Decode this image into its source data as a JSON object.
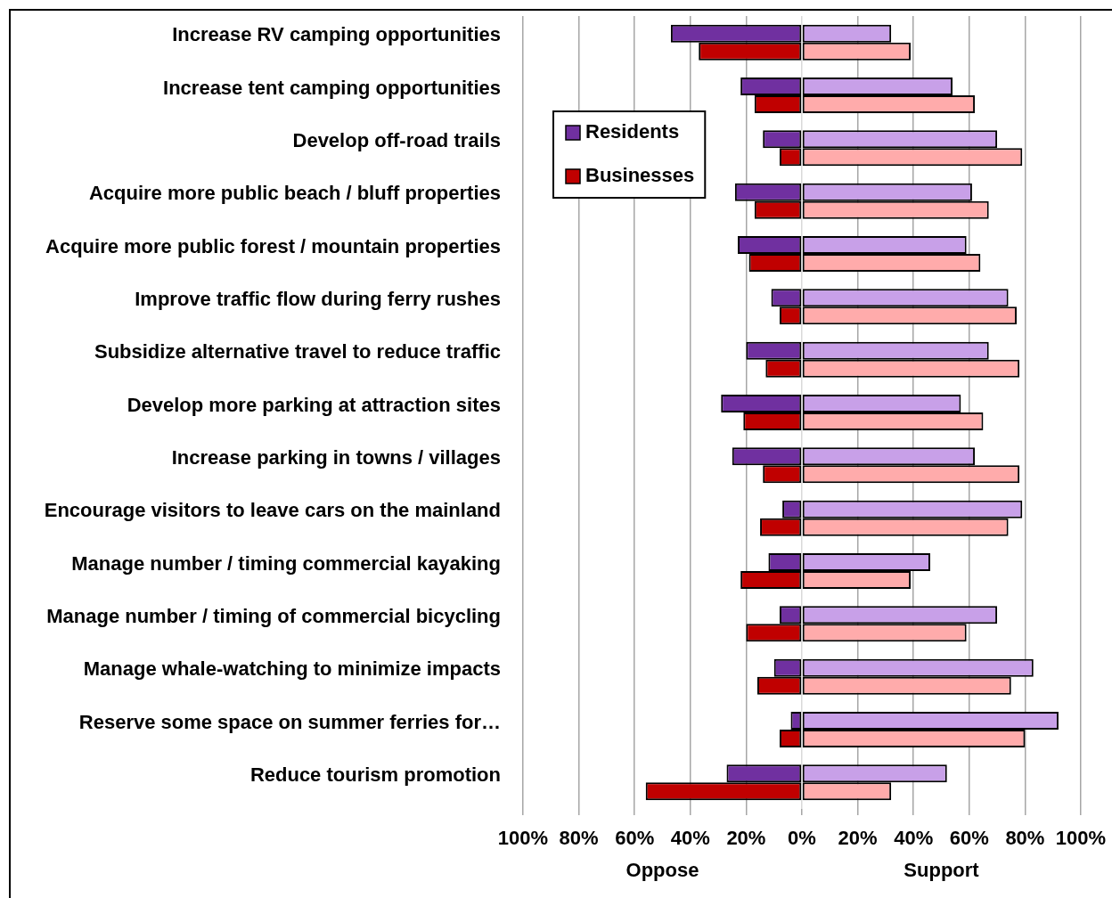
{
  "chart_data": {
    "type": "bar",
    "orientation": "horizontal",
    "stacked": true,
    "categories": [
      "Increase RV camping opportunities",
      null,
      "Increase tent camping opportunities",
      null,
      "Develop off-road trails",
      null,
      "Acquire more public beach / bluff properties",
      null,
      "Acquire more public forest / mountain properties",
      null,
      "Improve traffic flow during ferry rushes",
      null,
      "Subsidize alternative travel to reduce traffic",
      null,
      "Develop more parking at attraction sites",
      null,
      "Increase parking in towns / villages",
      null,
      "Encourage visitors to leave cars on the mainland",
      null,
      "Manage number / timing commercial kayaking",
      null,
      "Manage number / timing of commercial bicycling",
      null,
      "Manage whale-watching to minimize impacts",
      null,
      "Reserve some space on summer ferries for…",
      null,
      "Reduce tourism promotion",
      null
    ],
    "series": [
      {
        "name": "Residents",
        "color": "#7030a0",
        "values": [
          -47,
          null,
          -22,
          null,
          -14,
          null,
          -24,
          null,
          -23,
          null,
          -11,
          null,
          -20,
          null,
          -29,
          null,
          -25,
          null,
          -7,
          null,
          -12,
          null,
          -8,
          null,
          -10,
          null,
          -4,
          null,
          -27,
          null
        ]
      },
      {
        "name": "Businesses",
        "color": "#c00000",
        "values": [
          null,
          -37,
          null,
          -17,
          null,
          -8,
          null,
          -17,
          null,
          -19,
          null,
          -8,
          null,
          -13,
          null,
          -21,
          null,
          -14,
          null,
          -15,
          null,
          -22,
          null,
          -20,
          null,
          -16,
          null,
          -8,
          null,
          -56
        ]
      },
      {
        "color": "#c8a0e8",
        "values": [
          32,
          null,
          54,
          null,
          70,
          null,
          61,
          null,
          59,
          null,
          74,
          null,
          67,
          null,
          57,
          null,
          62,
          null,
          79,
          null,
          46,
          null,
          70,
          null,
          83,
          null,
          92,
          null,
          52,
          null
        ]
      },
      {
        "color": "#ffabab",
        "values": [
          null,
          39,
          null,
          62,
          null,
          79,
          null,
          67,
          null,
          64,
          null,
          77,
          null,
          78,
          null,
          65,
          null,
          78,
          null,
          74,
          null,
          39,
          null,
          59,
          null,
          75,
          null,
          80,
          null,
          32
        ]
      }
    ],
    "xlim": [
      -100,
      100
    ],
    "xticks": [
      {
        "value": -100,
        "label": "100%"
      },
      {
        "value": -80,
        "label": "80%"
      },
      {
        "value": -60,
        "label": "60%"
      },
      {
        "value": -40,
        "label": "40%"
      },
      {
        "value": -20,
        "label": "20%"
      },
      {
        "value": 0,
        "label": "0%"
      },
      {
        "value": 20,
        "label": "20%"
      },
      {
        "value": 40,
        "label": "40%"
      },
      {
        "value": 60,
        "label": "60%"
      },
      {
        "value": 80,
        "label": "80%"
      },
      {
        "value": 100,
        "label": "100%"
      }
    ],
    "grid": "x",
    "legend": "top left",
    "annotations": [
      "Oppose",
      "Support"
    ]
  }
}
